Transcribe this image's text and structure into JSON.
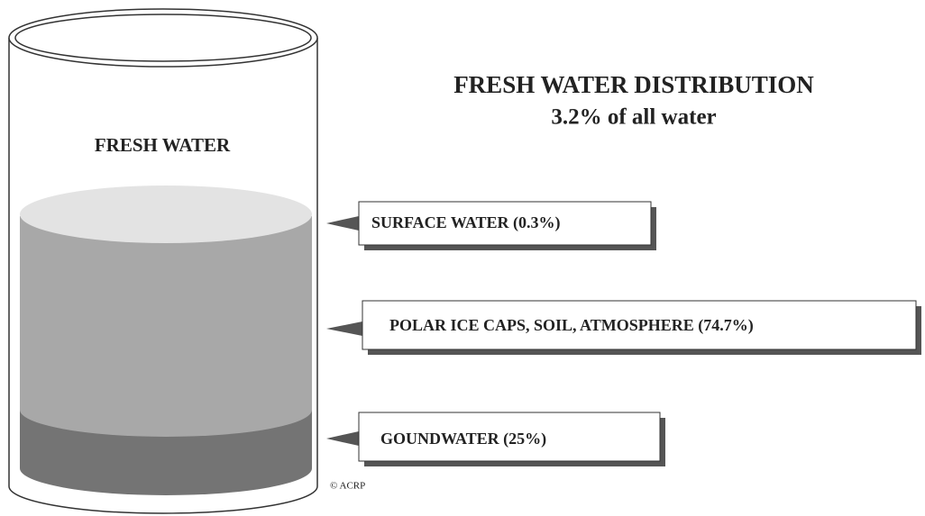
{
  "title": "FRESH WATER DISTRIBUTION",
  "subtitle": "3.2% of all water",
  "container_label": "FRESH WATER",
  "labels": [
    "SURFACE WATER (0.3%)",
    "POLAR ICE CAPS, SOIL, ATMOSPHERE (74.7%)",
    "GOUNDWATER (25%)"
  ],
  "credit": "© ACRP"
}
